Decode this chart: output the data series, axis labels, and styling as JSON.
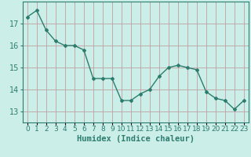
{
  "x": [
    0,
    1,
    2,
    3,
    4,
    5,
    6,
    7,
    8,
    9,
    10,
    11,
    12,
    13,
    14,
    15,
    16,
    17,
    18,
    19,
    20,
    21,
    22,
    23
  ],
  "y": [
    17.3,
    17.6,
    16.7,
    16.2,
    16.0,
    16.0,
    15.8,
    14.5,
    14.5,
    14.5,
    13.5,
    13.5,
    13.8,
    14.0,
    14.6,
    15.0,
    15.1,
    15.0,
    14.9,
    13.9,
    13.6,
    13.5,
    13.1,
    13.5
  ],
  "line_color": "#2d7d6e",
  "marker": "D",
  "marker_size": 2.0,
  "linewidth": 1.0,
  "bg_color": "#cceee8",
  "grid_color": "#c0a0a0",
  "xlabel": "Humidex (Indice chaleur)",
  "xlabel_fontsize": 7.5,
  "xtick_labels": [
    "0",
    "1",
    "2",
    "3",
    "4",
    "5",
    "6",
    "7",
    "8",
    "9",
    "10",
    "11",
    "12",
    "13",
    "14",
    "15",
    "16",
    "17",
    "18",
    "19",
    "20",
    "21",
    "22",
    "23"
  ],
  "yticks": [
    13,
    14,
    15,
    16,
    17
  ],
  "ylim": [
    12.5,
    18.0
  ],
  "xlim": [
    -0.5,
    23.5
  ],
  "tick_fontsize": 7.0,
  "axis_color": "#2d7d6e"
}
